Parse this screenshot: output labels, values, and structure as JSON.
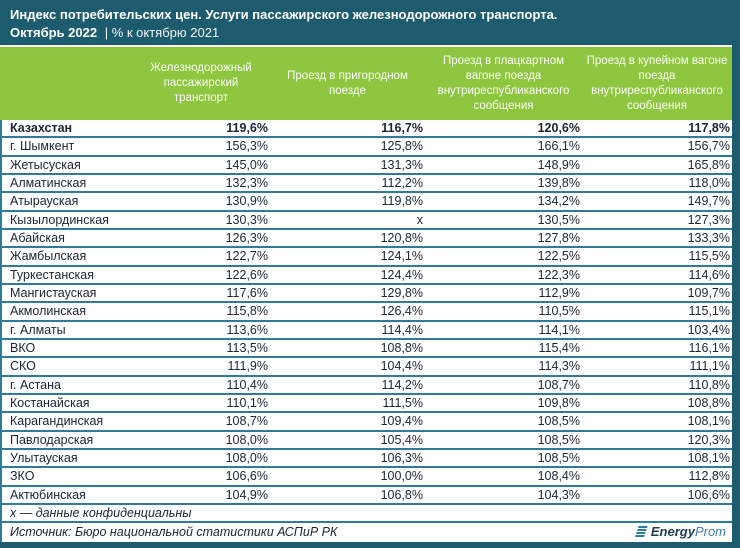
{
  "header": {
    "title": "Индекс потребительских цен. Услуги пассажирского железнодорожного транспорта.",
    "period": "Октябрь 2022",
    "subtitle": "| % к октябрю 2021"
  },
  "chart_data": {
    "type": "table",
    "title": "Индекс потребительских цен. Услуги пассажирского железнодорожного транспорта. Октябрь 2022, % к октябрю 2021",
    "columns": [
      "",
      "Железнодорожный пассажирский транспорт",
      "Проезд в пригородном поезде",
      "Проезд в плацкартном вагоне поезда внутриреспубликанского сообщения",
      "Проезд в купейном вагоне поезда внутриреспубликанского сообщения"
    ],
    "rows": [
      {
        "region": "Казахстан",
        "values": [
          "119,6%",
          "116,7%",
          "120,6%",
          "117,8%"
        ],
        "bold": true
      },
      {
        "region": "г. Шымкент",
        "values": [
          "156,3%",
          "125,8%",
          "166,1%",
          "156,7%"
        ],
        "bold": false
      },
      {
        "region": "Жетысуская",
        "values": [
          "145,0%",
          "131,3%",
          "148,9%",
          "165,8%"
        ],
        "bold": false
      },
      {
        "region": "Алматинская",
        "values": [
          "132,3%",
          "112,2%",
          "139,8%",
          "118,0%"
        ],
        "bold": false
      },
      {
        "region": "Атырауская",
        "values": [
          "130,9%",
          "119,8%",
          "134,2%",
          "149,7%"
        ],
        "bold": false
      },
      {
        "region": "Кызылординская",
        "values": [
          "130,3%",
          "х",
          "130,5%",
          "127,3%"
        ],
        "bold": false
      },
      {
        "region": "Абайская",
        "values": [
          "126,3%",
          "120,8%",
          "127,8%",
          "133,3%"
        ],
        "bold": false
      },
      {
        "region": "Жамбылская",
        "values": [
          "122,7%",
          "124,1%",
          "122,5%",
          "115,5%"
        ],
        "bold": false
      },
      {
        "region": "Туркестанская",
        "values": [
          "122,6%",
          "124,4%",
          "122,3%",
          "114,6%"
        ],
        "bold": false
      },
      {
        "region": "Мангистауская",
        "values": [
          "117,6%",
          "129,8%",
          "112,9%",
          "109,7%"
        ],
        "bold": false
      },
      {
        "region": "Акмолинская",
        "values": [
          "115,8%",
          "126,4%",
          "110,5%",
          "115,1%"
        ],
        "bold": false
      },
      {
        "region": "г. Алматы",
        "values": [
          "113,6%",
          "114,4%",
          "114,1%",
          "103,4%"
        ],
        "bold": false
      },
      {
        "region": "ВКО",
        "values": [
          "113,5%",
          "108,8%",
          "115,4%",
          "116,1%"
        ],
        "bold": false
      },
      {
        "region": "СКО",
        "values": [
          "111,9%",
          "104,4%",
          "114,3%",
          "111,1%"
        ],
        "bold": false
      },
      {
        "region": "г. Астана",
        "values": [
          "110,4%",
          "114,2%",
          "108,7%",
          "110,8%"
        ],
        "bold": false
      },
      {
        "region": "Костанайская",
        "values": [
          "110,1%",
          "111,5%",
          "109,8%",
          "108,8%"
        ],
        "bold": false
      },
      {
        "region": "Карагандинская",
        "values": [
          "108,7%",
          "109,4%",
          "108,5%",
          "108,1%"
        ],
        "bold": false
      },
      {
        "region": "Павлодарская",
        "values": [
          "108,0%",
          "105,4%",
          "108,5%",
          "120,3%"
        ],
        "bold": false
      },
      {
        "region": "Улытауская",
        "values": [
          "108,0%",
          "106,3%",
          "108,5%",
          "108,1%"
        ],
        "bold": false
      },
      {
        "region": "ЗКО",
        "values": [
          "106,6%",
          "100,0%",
          "108,4%",
          "112,8%"
        ],
        "bold": false
      },
      {
        "region": "Актюбинская",
        "values": [
          "104,9%",
          "106,8%",
          "104,3%",
          "106,6%"
        ],
        "bold": false
      }
    ]
  },
  "footer": {
    "footnote": "х — данные конфиденциальны",
    "source": "Источник: Бюро национальной статистики АСПиР РК"
  },
  "logo": {
    "bold_part": "Energy",
    "regular_part": "Prom"
  },
  "colors": {
    "header_teal": "#1d5c6e",
    "table_header_green": "#8ec63f",
    "separator_teal": "#2d7c99",
    "text": "#1b2533"
  }
}
